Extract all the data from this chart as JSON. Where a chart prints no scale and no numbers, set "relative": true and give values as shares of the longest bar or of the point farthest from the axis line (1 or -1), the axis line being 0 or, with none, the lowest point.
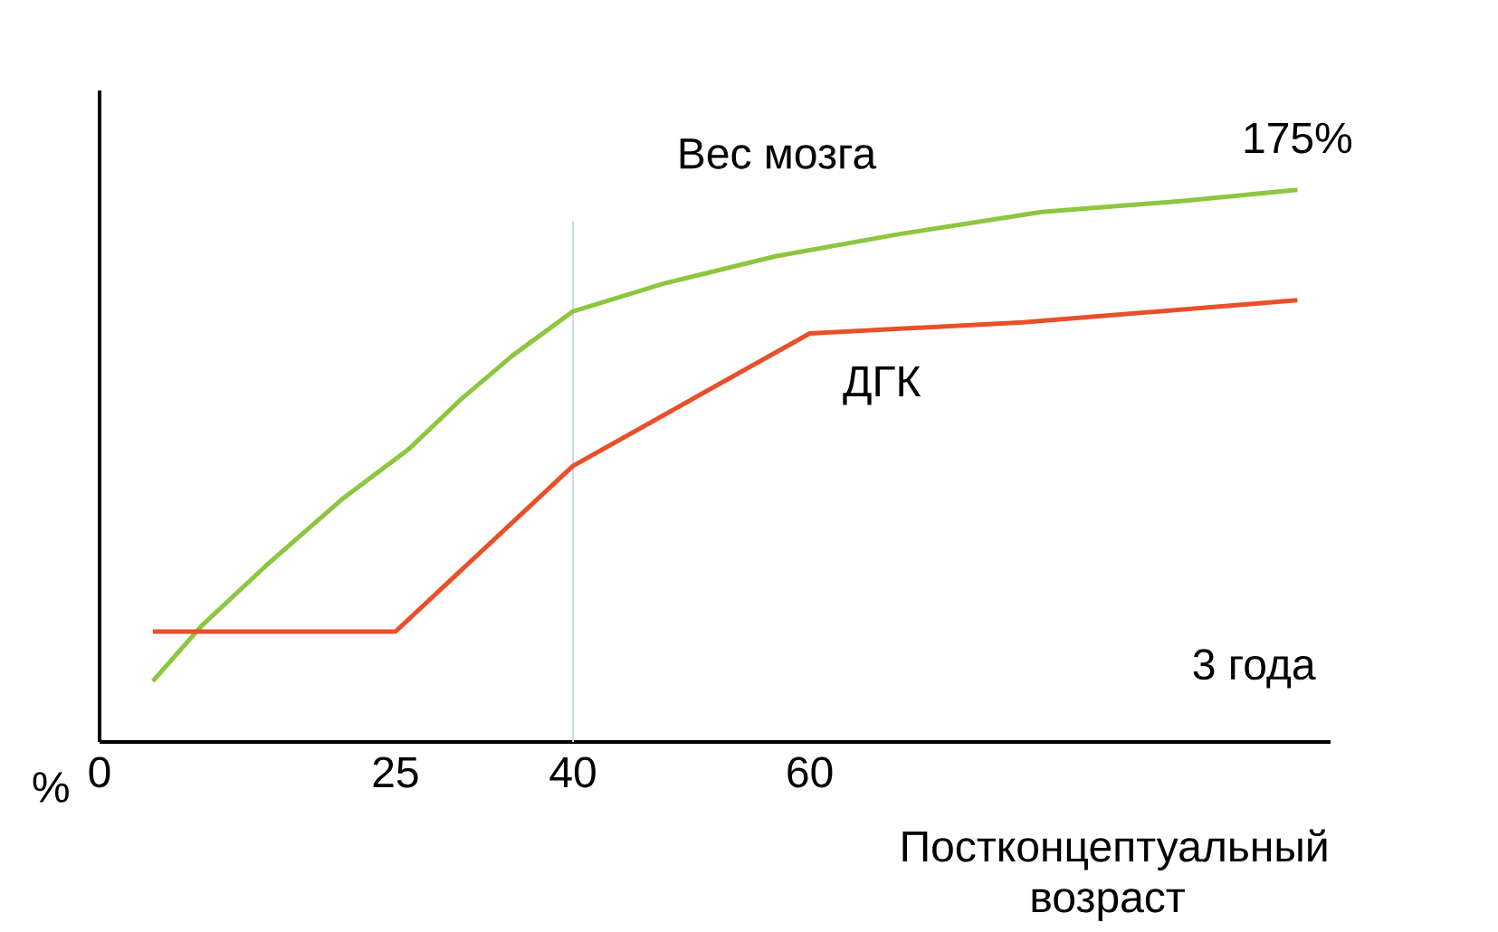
{
  "chart_data": {
    "type": "line",
    "relative": true,
    "xlabel": "Постконцептуальный возраст",
    "ylabel": "%",
    "xlim": [
      0,
      104
    ],
    "xticks": [
      0,
      25,
      40,
      60
    ],
    "series": [
      {
        "name": "Вес мозга",
        "color": "#8dc63f",
        "x": [
          4.5,
          8.6,
          14.1,
          20.5,
          26.1,
          30.5,
          34.9,
          40,
          47.6,
          57.2,
          67.6,
          79.6,
          91.6,
          101.2
        ],
        "values": [
          0.11,
          0.21,
          0.32,
          0.44,
          0.53,
          0.62,
          0.7,
          0.78,
          0.83,
          0.88,
          0.92,
          0.96,
          0.98,
          1
        ]
      },
      {
        "name": "ДГК",
        "color": "#e8502a",
        "x": [
          4.5,
          25,
          40,
          60,
          78,
          101.2
        ],
        "values": [
          0.2,
          0.2,
          0.5,
          0.74,
          0.76,
          0.8
        ]
      }
    ],
    "ref_lines": [
      {
        "axis": "x",
        "value": 40,
        "color": "#c9dbe6"
      }
    ],
    "annotations": [
      {
        "text": "175%",
        "x": 101.2,
        "y": 1
      },
      "3 года"
    ],
    "grid": false,
    "marker": "none",
    "line_style": "solid"
  }
}
